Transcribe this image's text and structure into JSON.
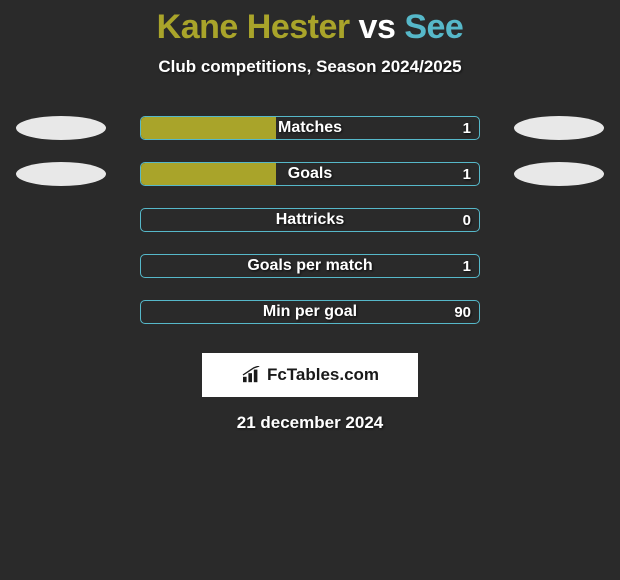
{
  "title": {
    "player1": "Kane Hester",
    "vs": "vs",
    "player2": "See",
    "player1_color": "#a9a42a",
    "vs_color": "#ffffff",
    "player2_color": "#56b8c9"
  },
  "subtitle": "Club competitions, Season 2024/2025",
  "colors": {
    "background": "#2a2a2a",
    "bar_left": "#a9a42a",
    "bar_right": "#56b8c9",
    "bar_border": "#56b8c9",
    "ellipse_left": "#e8e8e8",
    "ellipse_right": "#e8e8e8",
    "text": "#ffffff"
  },
  "stats": [
    {
      "label": "Matches",
      "left_value": "",
      "right_value": "1",
      "left_pct": 40,
      "right_pct": 0,
      "show_left_ellipse": true,
      "show_right_ellipse": true
    },
    {
      "label": "Goals",
      "left_value": "",
      "right_value": "1",
      "left_pct": 40,
      "right_pct": 0,
      "show_left_ellipse": true,
      "show_right_ellipse": true
    },
    {
      "label": "Hattricks",
      "left_value": "",
      "right_value": "0",
      "left_pct": 0,
      "right_pct": 0,
      "show_left_ellipse": false,
      "show_right_ellipse": false
    },
    {
      "label": "Goals per match",
      "left_value": "",
      "right_value": "1",
      "left_pct": 0,
      "right_pct": 0,
      "show_left_ellipse": false,
      "show_right_ellipse": false
    },
    {
      "label": "Min per goal",
      "left_value": "",
      "right_value": "90",
      "left_pct": 0,
      "right_pct": 0,
      "show_left_ellipse": false,
      "show_right_ellipse": false
    }
  ],
  "brand": "FcTables.com",
  "date": "21 december 2024"
}
